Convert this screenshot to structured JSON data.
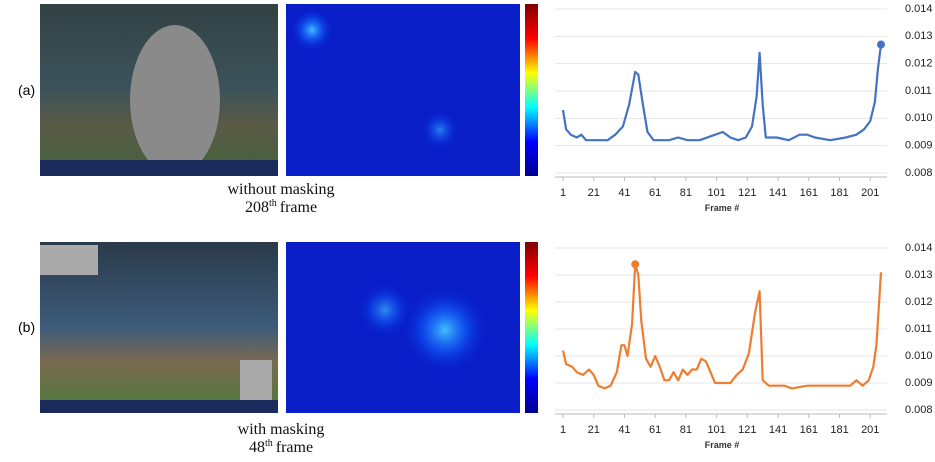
{
  "panels": [
    {
      "label": "(a)",
      "caption": {
        "line1": "without masking",
        "frame_number": "208",
        "suffix": "th",
        "frame_word": "frame"
      }
    },
    {
      "label": "(b)",
      "caption": {
        "line1": "with masking",
        "frame_number": "48",
        "suffix": "th",
        "frame_word": "frame"
      }
    }
  ],
  "chart_data": [
    {
      "type": "line",
      "x_label": "Frame #",
      "color": "#4472c4",
      "x": [
        1,
        3,
        6,
        10,
        13,
        16,
        25,
        30,
        35,
        40,
        44,
        48,
        50,
        53,
        56,
        60,
        70,
        76,
        82,
        90,
        100,
        105,
        110,
        115,
        120,
        124,
        127,
        129,
        131,
        133,
        140,
        148,
        155,
        160,
        165,
        175,
        185,
        192,
        197,
        201,
        204,
        206,
        208
      ],
      "values": [
        0.0103,
        0.0096,
        0.0094,
        0.0093,
        0.0094,
        0.0092,
        0.0092,
        0.0092,
        0.0094,
        0.0097,
        0.0105,
        0.0117,
        0.0116,
        0.0105,
        0.0095,
        0.0092,
        0.0092,
        0.0093,
        0.0092,
        0.0092,
        0.0094,
        0.0095,
        0.0093,
        0.0092,
        0.0093,
        0.0097,
        0.0108,
        0.0124,
        0.0105,
        0.0093,
        0.0093,
        0.0092,
        0.0094,
        0.0094,
        0.0093,
        0.0092,
        0.0093,
        0.0094,
        0.0096,
        0.0099,
        0.0106,
        0.0118,
        0.0127
      ],
      "highlight": {
        "x": 208,
        "y": 0.0127
      },
      "xlim": [
        1,
        208
      ],
      "xticks": [
        1,
        21,
        41,
        61,
        81,
        101,
        121,
        141,
        161,
        181,
        201
      ],
      "ylim": [
        0.008,
        0.014
      ],
      "yticks": [
        0.008,
        0.009,
        {
          "value": 0.01,
          "label": "0.010"
        },
        0.011,
        0.012,
        0.013,
        0.014
      ],
      "grid": true
    },
    {
      "type": "line",
      "x_label": "Frame #",
      "color": "#ed7d31",
      "x": [
        1,
        3,
        7,
        10,
        14,
        18,
        21,
        24,
        28,
        32,
        36,
        39,
        41,
        43,
        46,
        48,
        50,
        52,
        55,
        58,
        61,
        64,
        67,
        70,
        73,
        76,
        79,
        82,
        85,
        88,
        91,
        94,
        97,
        100,
        105,
        110,
        114,
        118,
        122,
        126,
        129,
        131,
        135,
        145,
        150,
        160,
        170,
        180,
        188,
        192,
        196,
        200,
        203,
        205,
        208
      ],
      "values": [
        0.0102,
        0.0097,
        0.0096,
        0.0094,
        0.0093,
        0.0095,
        0.0093,
        0.0089,
        0.0088,
        0.0089,
        0.0094,
        0.0104,
        0.0104,
        0.01,
        0.0112,
        0.0134,
        0.013,
        0.0113,
        0.0099,
        0.0096,
        0.01,
        0.0096,
        0.0091,
        0.0091,
        0.0094,
        0.0091,
        0.0095,
        0.0093,
        0.0095,
        0.0095,
        0.0099,
        0.0098,
        0.0094,
        0.009,
        0.009,
        0.009,
        0.0093,
        0.0095,
        0.0101,
        0.0116,
        0.0124,
        0.0091,
        0.0089,
        0.0089,
        0.0088,
        0.0089,
        0.0089,
        0.0089,
        0.0089,
        0.0091,
        0.0089,
        0.0091,
        0.0096,
        0.0104,
        0.0131
      ],
      "highlight": {
        "x": 48,
        "y": 0.0134
      },
      "xlim": [
        1,
        208
      ],
      "xticks": [
        1,
        21,
        41,
        61,
        81,
        101,
        121,
        141,
        161,
        181,
        201
      ],
      "ylim": [
        0.008,
        0.014
      ],
      "yticks": [
        0.008,
        0.009,
        {
          "value": 0.01,
          "label": "0.010"
        },
        0.011,
        0.012,
        0.013,
        0.014
      ],
      "grid": true
    }
  ]
}
